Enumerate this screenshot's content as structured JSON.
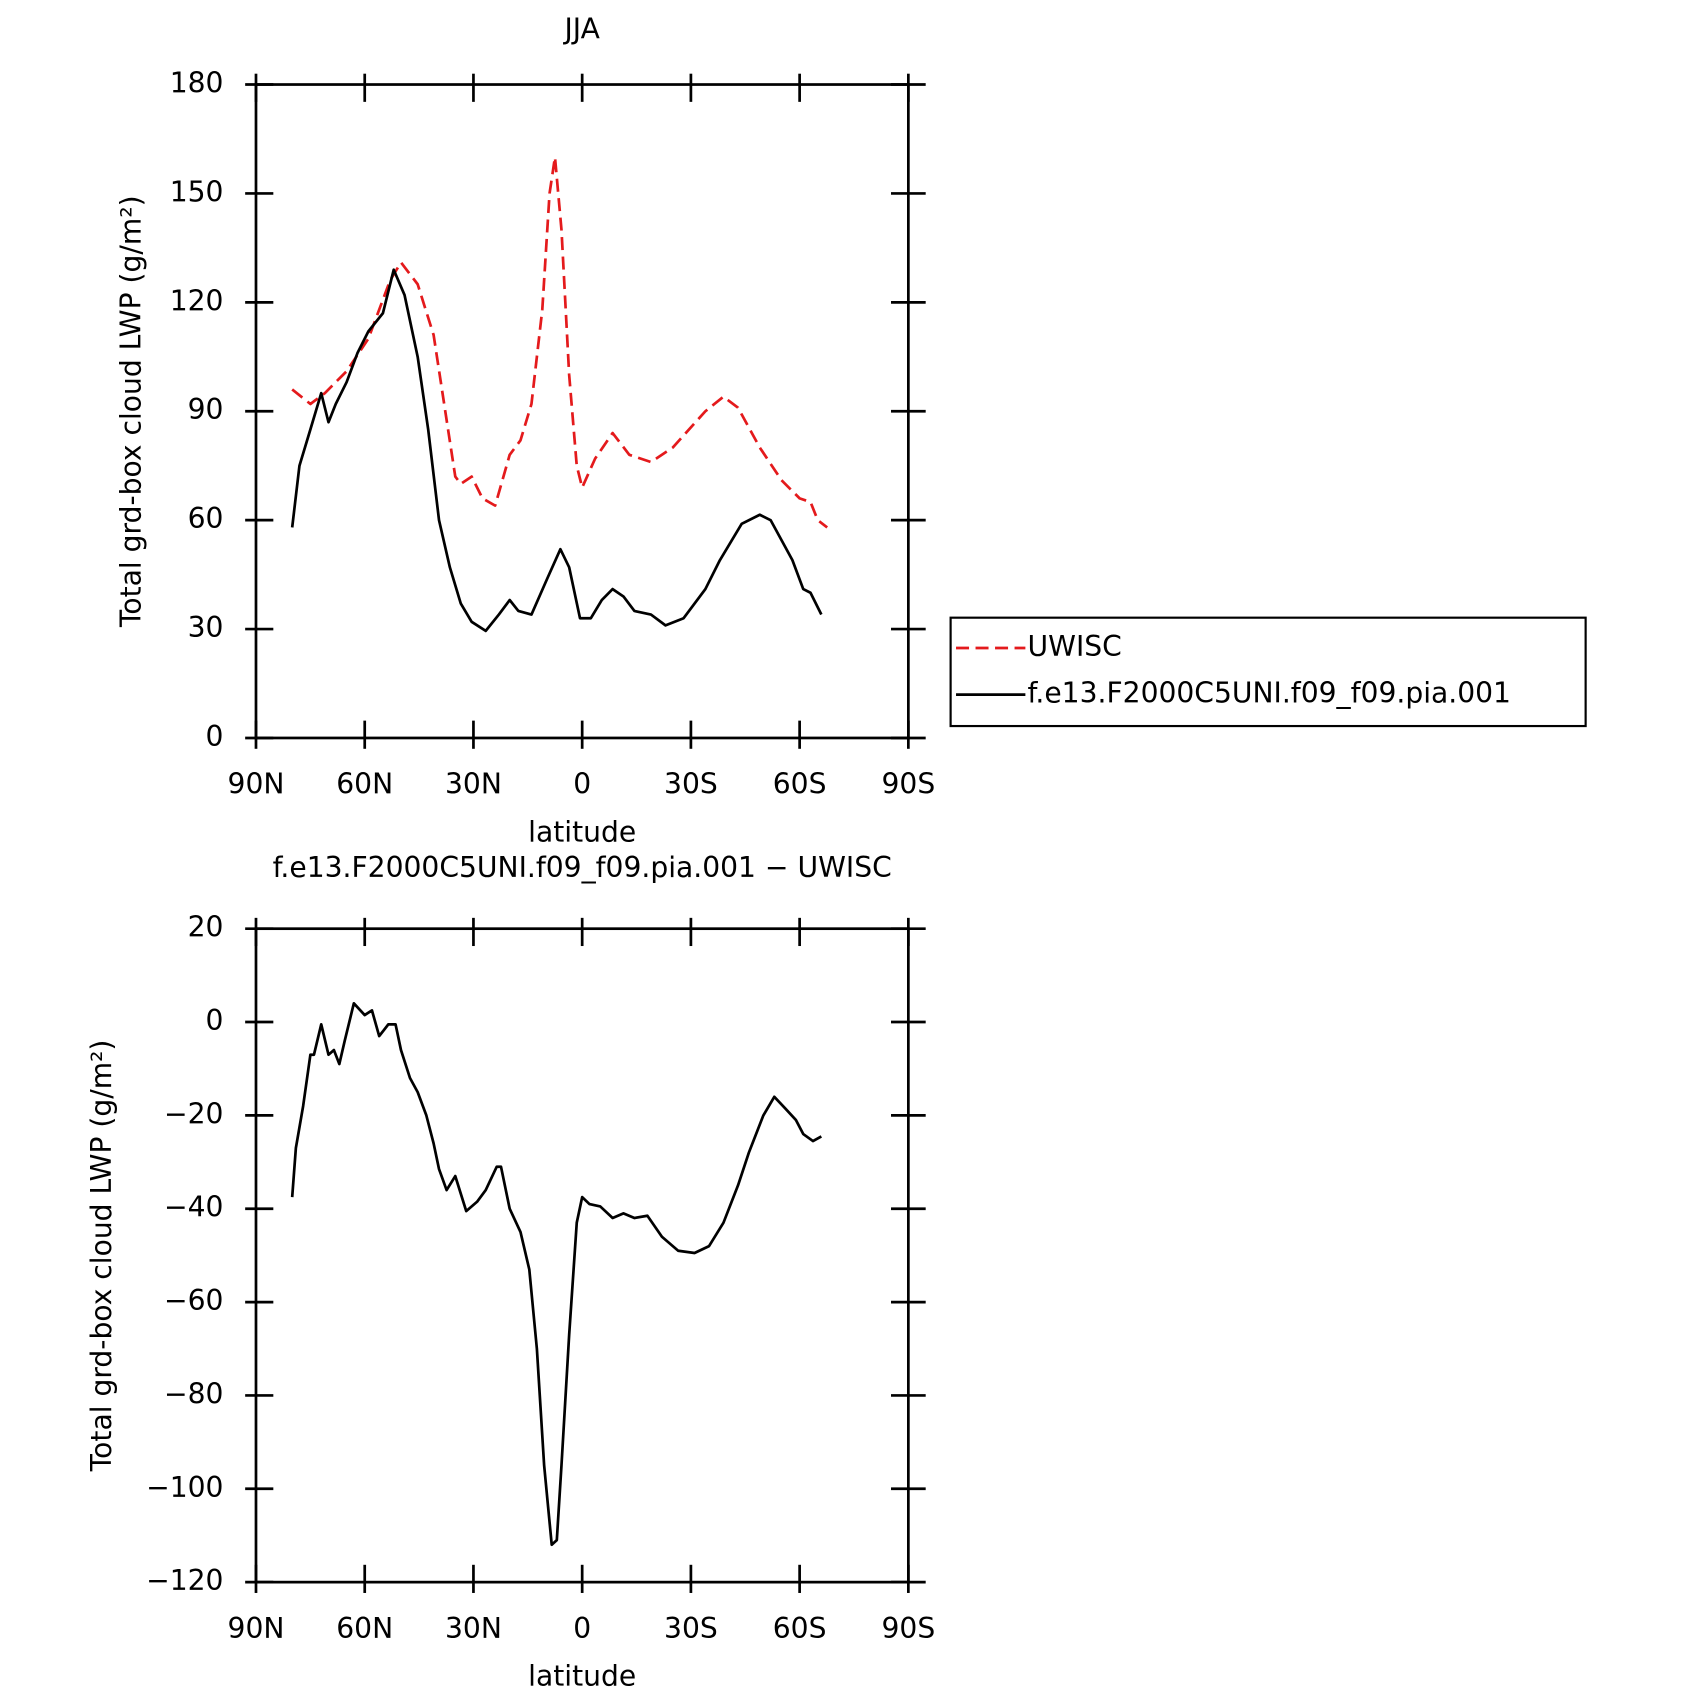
{
  "chart_data": [
    {
      "type": "line",
      "title": "JJA",
      "xlabel": "latitude",
      "ylabel": "Total grd-box cloud LWP (g/m²)",
      "xlim": [
        90,
        -90
      ],
      "xticks": [
        {
          "value": 90,
          "label": "90N"
        },
        {
          "value": 60,
          "label": "60N"
        },
        {
          "value": 30,
          "label": "30N"
        },
        0,
        {
          "value": -30,
          "label": "30S"
        },
        {
          "value": -60,
          "label": "60S"
        },
        {
          "value": -90,
          "label": "90S"
        }
      ],
      "ylim": [
        0,
        180
      ],
      "yticks": [
        0,
        30,
        60,
        90,
        120,
        150,
        180
      ],
      "legend": "right",
      "series": [
        {
          "name": "UWISC",
          "color": "#e41a1c",
          "linestyle": "dashed",
          "x": [
            80,
            75,
            71,
            65,
            59,
            53,
            50,
            45.4,
            41,
            35,
            33.5,
            30.5,
            27.5,
            24,
            20,
            17,
            14,
            11,
            9,
            7.5,
            5.7,
            3.6,
            1.5,
            0,
            -3.6,
            -8.4,
            -13,
            -19,
            -25,
            -34,
            -39,
            -43,
            -49,
            -55,
            -60,
            -63,
            -65,
            -67.6
          ],
          "values": [
            96,
            92,
            95,
            101,
            110,
            126,
            131,
            125,
            111,
            72,
            70,
            72,
            66,
            64,
            78,
            82,
            92,
            118,
            150,
            160,
            140,
            100,
            75,
            69,
            77,
            84,
            78,
            76,
            80,
            90,
            94,
            91,
            80,
            71,
            66,
            65,
            60,
            58
          ]
        },
        {
          "name": "f.e13.F2000C5UNI.f09_f09.pia.001",
          "color": "#000000",
          "linestyle": "solid",
          "x": [
            80,
            78,
            75,
            72,
            70,
            68,
            65,
            62,
            59,
            55,
            52,
            49,
            45.4,
            42.5,
            39.5,
            36.5,
            33.5,
            30.5,
            26.6,
            23,
            20,
            17.6,
            14,
            9.6,
            6,
            3.6,
            0.6,
            -2.4,
            -5.4,
            -8.4,
            -11.4,
            -14.4,
            -19,
            -23,
            -28,
            -34,
            -38,
            -44,
            -49,
            -52,
            -58,
            -61,
            -63,
            -66
          ],
          "values": [
            58,
            75,
            85,
            95,
            87,
            92,
            98,
            106,
            112,
            117,
            129,
            122,
            105,
            85,
            60,
            47,
            37,
            32,
            29.5,
            34,
            38,
            35,
            34,
            44,
            52,
            47,
            33,
            33,
            38,
            41,
            39,
            35,
            34,
            31,
            33,
            41,
            49,
            59,
            61.5,
            60,
            49,
            41,
            40,
            34
          ]
        }
      ]
    },
    {
      "type": "line",
      "title": "f.e13.F2000C5UNI.f09_f09.pia.001 − UWISC",
      "xlabel": "latitude",
      "ylabel": "Total grd-box cloud LWP (g/m²)",
      "xlim": [
        90,
        -90
      ],
      "xticks": [
        {
          "value": 90,
          "label": "90N"
        },
        {
          "value": 60,
          "label": "60N"
        },
        {
          "value": 30,
          "label": "30N"
        },
        0,
        {
          "value": -30,
          "label": "30S"
        },
        {
          "value": -60,
          "label": "60S"
        },
        {
          "value": -90,
          "label": "90S"
        }
      ],
      "ylim": [
        -120,
        20
      ],
      "yticks": [
        {
          "value": -120,
          "label": "−120"
        },
        {
          "value": -100,
          "label": "−100"
        },
        {
          "value": -80,
          "label": "−80"
        },
        {
          "value": -60,
          "label": "−60"
        },
        {
          "value": -40,
          "label": "−40"
        },
        {
          "value": -20,
          "label": "−20"
        },
        0,
        20
      ],
      "series": [
        {
          "color": "#000000",
          "linestyle": "solid",
          "x": [
            80,
            79,
            77,
            75,
            74,
            72,
            70,
            68.5,
            67,
            65.5,
            63,
            60,
            58,
            56,
            53.5,
            51.5,
            50,
            47.5,
            45.4,
            43,
            41,
            39.5,
            37.4,
            35,
            32,
            29,
            26.6,
            23.6,
            22.4,
            20,
            17,
            14.6,
            12.5,
            10.5,
            8.4,
            7,
            5.7,
            3.6,
            1.5,
            0,
            -2,
            -5,
            -8.4,
            -11.4,
            -14.4,
            -18,
            -22,
            -26.5,
            -31,
            -35,
            -39,
            -43,
            -46,
            -50,
            -53,
            -56,
            -59,
            -61,
            -63.7,
            -66
          ],
          "values": [
            -37.5,
            -27,
            -18,
            -7,
            -7,
            -0.5,
            -7,
            -6,
            -9,
            -4,
            4,
            1.5,
            2.5,
            -3,
            -0.5,
            -0.5,
            -6,
            -12,
            -15,
            -20,
            -26,
            -31.5,
            -36,
            -33,
            -40.5,
            -38.5,
            -36,
            -31,
            -31,
            -40,
            -45,
            -53,
            -70,
            -95,
            -112,
            -111,
            -95,
            -67,
            -43,
            -37.5,
            -39,
            -39.5,
            -42,
            -41,
            -42,
            -41.5,
            -46,
            -49,
            -49.5,
            -48,
            -43,
            -35,
            -28,
            -20,
            -16,
            -18.5,
            -21,
            -24,
            -25.5,
            -24.5
          ]
        }
      ]
    }
  ]
}
